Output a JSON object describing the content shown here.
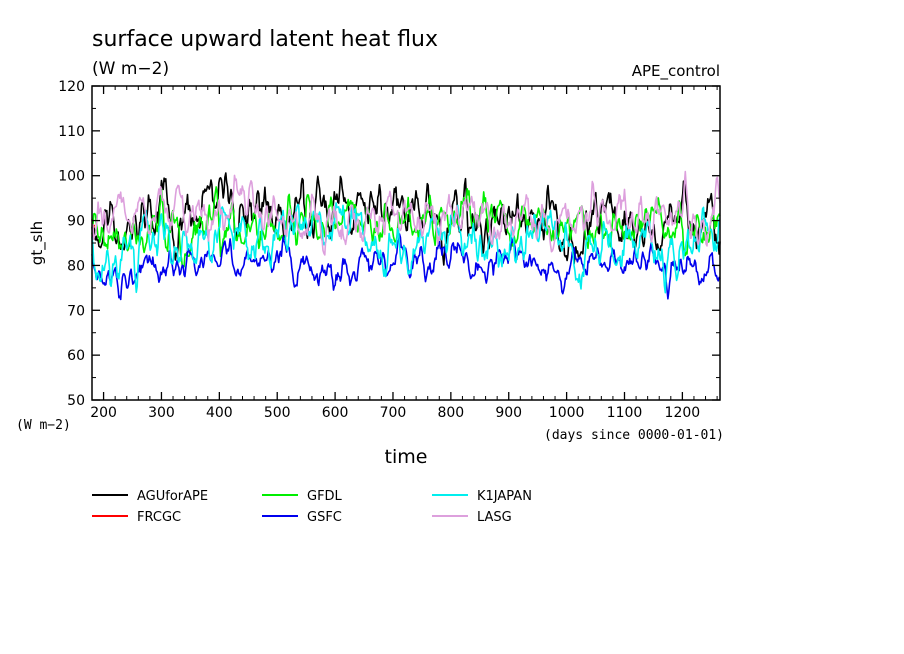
{
  "chart_data": {
    "type": "line",
    "title": "surface upward latent heat flux",
    "subtitle": "(W m−2)",
    "annotation": "APE_control",
    "xlabel": "time",
    "ylabel": "gt_slh",
    "y_unit_label": "(W m−2)",
    "x_unit_label": "(days since 0000-01-01)",
    "xlim": [
      180,
      1265
    ],
    "ylim": [
      50,
      120
    ],
    "x_ticks": [
      200,
      300,
      400,
      500,
      600,
      700,
      800,
      900,
      1000,
      1100,
      1200
    ],
    "y_ticks": [
      50,
      60,
      70,
      80,
      90,
      100,
      110,
      120
    ],
    "grid": false,
    "legend_position": "bottom",
    "series": [
      {
        "name": "AGUforAPE",
        "color": "#000000",
        "mean": 90,
        "amp": 4.5,
        "seed": 11,
        "start": 180,
        "end": 1265,
        "x": [
          300,
          380,
          420,
          570,
          760,
          825,
          1050,
          1250
        ],
        "y": [
          99,
          98,
          97,
          100,
          100,
          100,
          97,
          96
        ]
      },
      {
        "name": "FRCGC",
        "color": "#ff0000",
        "mean": 91,
        "amp": 2.5,
        "seed": 5,
        "start": 180,
        "end": 184,
        "x": [
          180,
          182
        ],
        "y": [
          95,
          88
        ]
      },
      {
        "name": "GFDL",
        "color": "#00ee00",
        "mean": 89,
        "amp": 3.5,
        "seed": 23,
        "start": 180,
        "end": 1265,
        "x": [
          300,
          395,
          520,
          1195
        ],
        "y": [
          97,
          98,
          97,
          95
        ]
      },
      {
        "name": "GSFC",
        "color": "#0000ee",
        "mean": 80.5,
        "amp": 2.8,
        "seed": 37,
        "start": 180,
        "end": 1265,
        "x": [
          340,
          530,
          1175
        ],
        "y": [
          77,
          75,
          72.5
        ]
      },
      {
        "name": "K1JAPAN",
        "color": "#00eeee",
        "mean": 85,
        "amp": 4.0,
        "seed": 49,
        "start": 180,
        "end": 1265,
        "x": [
          257,
          1170
        ],
        "y": [
          73,
          72.5
        ]
      },
      {
        "name": "LASG",
        "color": "#dda0dd",
        "mean": 90.5,
        "amp": 3.8,
        "seed": 61,
        "start": 180,
        "end": 1265,
        "x": [
          455,
          1045,
          1205
        ],
        "y": [
          99,
          100,
          101
        ]
      }
    ]
  }
}
